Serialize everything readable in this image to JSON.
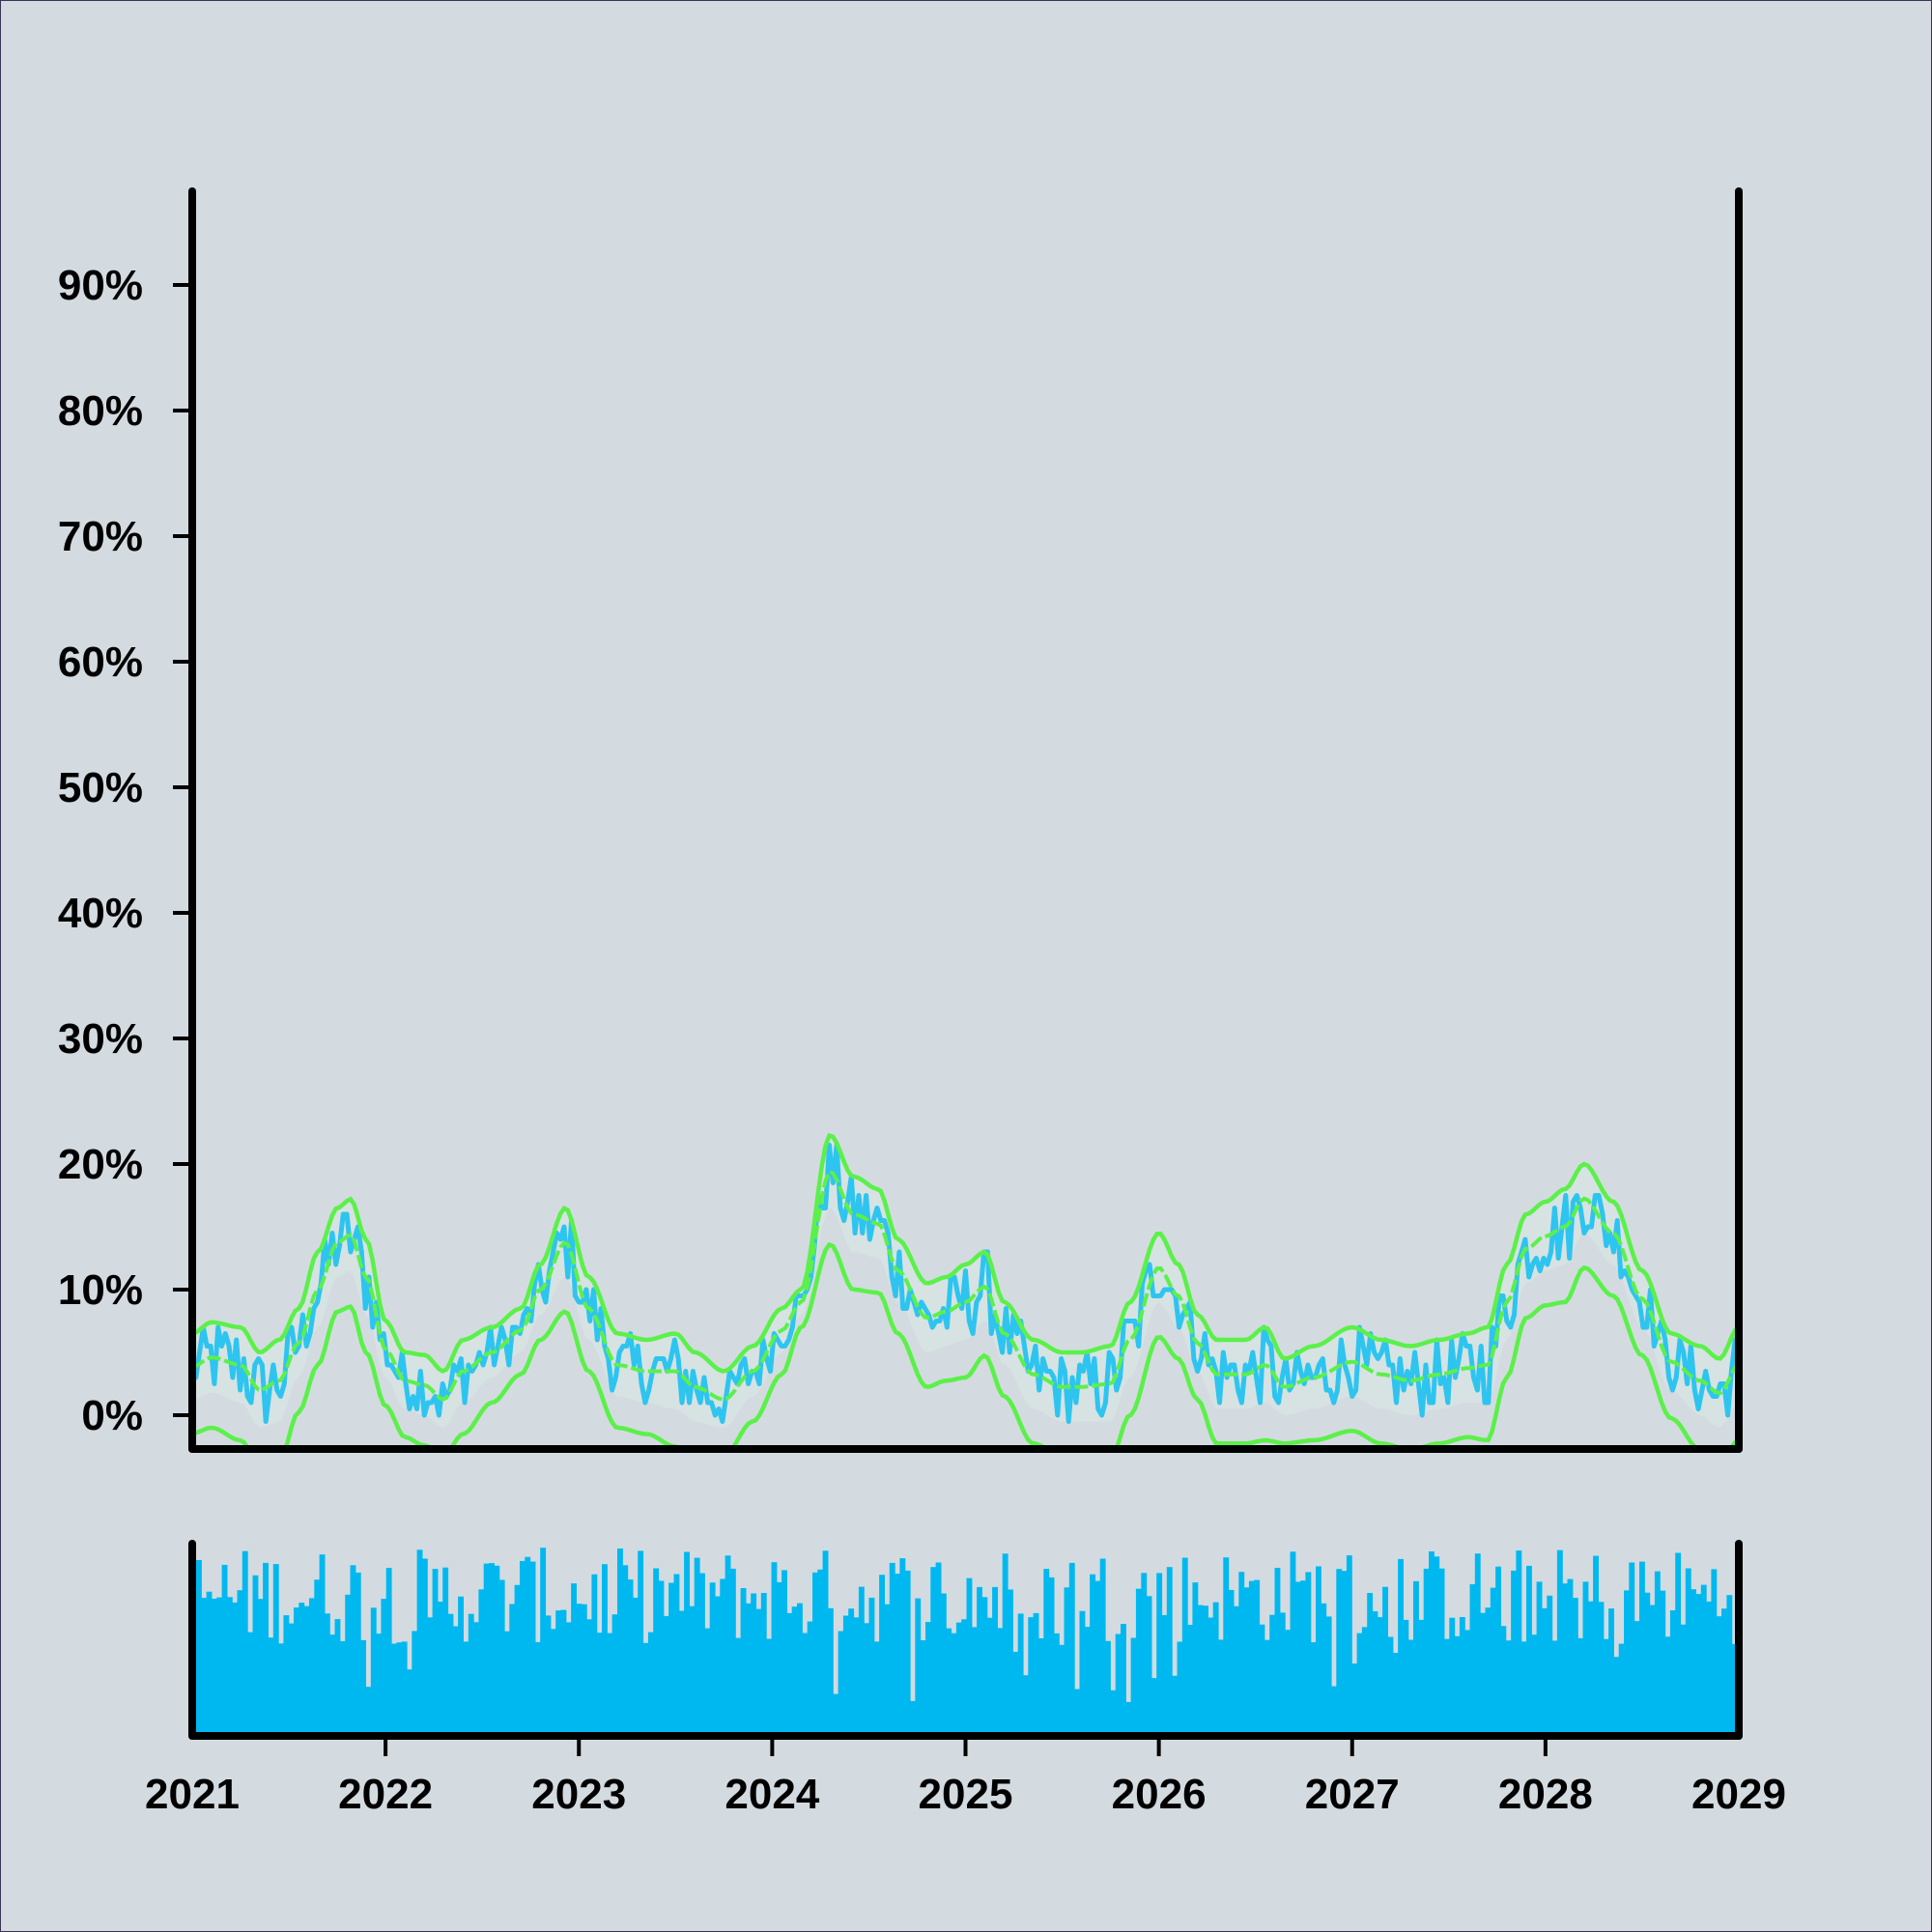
{
  "chart_data": {
    "type": "line",
    "title": "",
    "xlabel": "",
    "ylabel": "",
    "xlim": [
      2021,
      2029
    ],
    "ylim": [
      -2,
      98
    ],
    "x_ticks": [
      "2021",
      "2022",
      "2023",
      "2024",
      "2025",
      "2026",
      "2027",
      "2028",
      "2029"
    ],
    "y_ticks": [
      "0%",
      "10%",
      "20%",
      "30%",
      "40%",
      "50%",
      "60%",
      "70%",
      "80%",
      "90%"
    ],
    "grid": false,
    "legend": "none",
    "colors": {
      "background": "#d3dbe0",
      "price": "#2ec4f0",
      "band": "#5cf04a",
      "volume": "#00b8f0",
      "axis": "#000000"
    },
    "envelope_points": [
      [
        2021.0,
        1.2,
        6.5
      ],
      [
        2021.1,
        1.8,
        7.4
      ],
      [
        2021.25,
        1.0,
        7.0
      ],
      [
        2021.35,
        -1.0,
        5.0
      ],
      [
        2021.45,
        -0.5,
        6.0
      ],
      [
        2021.55,
        3.0,
        8.5
      ],
      [
        2021.65,
        7.0,
        13.0
      ],
      [
        2021.75,
        11.0,
        16.5
      ],
      [
        2021.82,
        11.5,
        17.2
      ],
      [
        2021.9,
        8.0,
        14.0
      ],
      [
        2022.0,
        3.0,
        7.5
      ],
      [
        2022.1,
        0.5,
        5.0
      ],
      [
        2022.2,
        0.0,
        4.8
      ],
      [
        2022.3,
        -1.0,
        3.5
      ],
      [
        2022.4,
        1.0,
        6.0
      ],
      [
        2022.55,
        3.0,
        7.0
      ],
      [
        2022.7,
        5.0,
        8.5
      ],
      [
        2022.8,
        8.0,
        12.0
      ],
      [
        2022.93,
        11.0,
        16.5
      ],
      [
        2023.05,
        6.0,
        11.0
      ],
      [
        2023.2,
        1.5,
        6.5
      ],
      [
        2023.35,
        1.0,
        6.0
      ],
      [
        2023.5,
        0.5,
        6.5
      ],
      [
        2023.6,
        -0.5,
        5.0
      ],
      [
        2023.75,
        -1.0,
        3.5
      ],
      [
        2023.9,
        1.5,
        5.5
      ],
      [
        2024.05,
        5.0,
        8.5
      ],
      [
        2024.15,
        8.0,
        10.0
      ],
      [
        2024.3,
        16.5,
        22.3
      ],
      [
        2024.42,
        13.0,
        19.0
      ],
      [
        2024.55,
        12.5,
        18.0
      ],
      [
        2024.65,
        9.0,
        14.0
      ],
      [
        2024.8,
        5.0,
        10.5
      ],
      [
        2024.9,
        5.5,
        11.0
      ],
      [
        2025.0,
        6.0,
        12.0
      ],
      [
        2025.1,
        7.5,
        13.0
      ],
      [
        2025.2,
        4.0,
        9.0
      ],
      [
        2025.35,
        0.5,
        6.0
      ],
      [
        2025.5,
        -0.5,
        5.0
      ],
      [
        2025.6,
        -0.5,
        5.0
      ],
      [
        2025.75,
        -0.5,
        5.5
      ],
      [
        2025.85,
        3.0,
        9.0
      ],
      [
        2026.0,
        9.0,
        14.5
      ],
      [
        2026.1,
        7.0,
        12.0
      ],
      [
        2026.2,
        3.5,
        8.0
      ],
      [
        2026.3,
        0.5,
        6.0
      ],
      [
        2026.45,
        0.5,
        6.0
      ],
      [
        2026.55,
        1.0,
        7.0
      ],
      [
        2026.65,
        0.0,
        4.5
      ],
      [
        2026.8,
        0.5,
        5.5
      ],
      [
        2027.0,
        1.5,
        7.0
      ],
      [
        2027.15,
        0.5,
        6.0
      ],
      [
        2027.3,
        0.0,
        5.5
      ],
      [
        2027.45,
        0.5,
        6.0
      ],
      [
        2027.6,
        1.0,
        6.5
      ],
      [
        2027.7,
        1.0,
        7.0
      ],
      [
        2027.8,
        6.0,
        12.0
      ],
      [
        2027.9,
        10.5,
        16.0
      ],
      [
        2028.0,
        11.5,
        17.0
      ],
      [
        2028.1,
        12.0,
        18.0
      ],
      [
        2028.2,
        14.5,
        20.0
      ],
      [
        2028.35,
        12.0,
        17.0
      ],
      [
        2028.5,
        7.0,
        11.5
      ],
      [
        2028.65,
        2.0,
        6.5
      ],
      [
        2028.8,
        0.0,
        5.5
      ],
      [
        2028.9,
        -1.0,
        4.5
      ],
      [
        2029.0,
        1.0,
        7.0
      ]
    ]
  }
}
